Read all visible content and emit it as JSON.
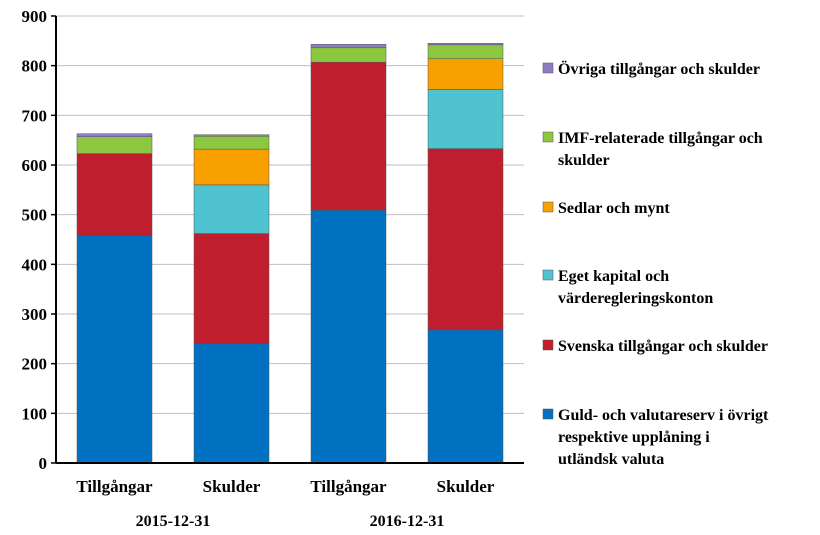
{
  "chart_data": {
    "type": "bar",
    "stacked": true,
    "title": "",
    "xlabel": "",
    "ylabel": "",
    "ylim": [
      0,
      900
    ],
    "yticks": [
      0,
      100,
      200,
      300,
      400,
      500,
      600,
      700,
      800,
      900
    ],
    "grid": true,
    "legend_position": "right",
    "categories": [
      "Tillgångar",
      "Skulder",
      "Tillgångar",
      "Skulder"
    ],
    "groups": [
      {
        "label": "2015-12-31",
        "categories": [
          0,
          1
        ]
      },
      {
        "label": "2016-12-31",
        "categories": [
          2,
          3
        ]
      }
    ],
    "series": [
      {
        "name": "Guld- och valutareserv i övrigt respektive upplåning i utländsk valuta",
        "legend_lines": [
          "Guld- och valutareserv i övrigt",
          "respektive upplåning i",
          "utländsk valuta"
        ],
        "color": "#0070C0",
        "values": [
          458,
          240,
          509,
          268
        ]
      },
      {
        "name": "Svenska tillgångar och skulder",
        "legend_lines": [
          "Svenska tillgångar och skulder"
        ],
        "color": "#BE1E2D",
        "values": [
          165,
          222,
          298,
          365
        ]
      },
      {
        "name": "Eget kapital och värderegleringskonton",
        "legend_lines": [
          "Eget kapital och",
          "värderegleringskonton"
        ],
        "color": "#4FC3D0",
        "values": [
          0,
          98,
          0,
          119
        ]
      },
      {
        "name": "Sedlar och mynt",
        "legend_lines": [
          "Sedlar och mynt"
        ],
        "color": "#F7A000",
        "values": [
          0,
          72,
          0,
          62
        ]
      },
      {
        "name": "IMF-relaterade tillgångar och skulder",
        "legend_lines": [
          "IMF-relaterade tillgångar och",
          "skulder"
        ],
        "color": "#8DC63F",
        "values": [
          34,
          26,
          29,
          28
        ]
      },
      {
        "name": "Övriga tillgångar och skulder",
        "legend_lines": [
          "Övriga tillgångar och skulder"
        ],
        "color": "#8E7CC3",
        "values": [
          6,
          3,
          7,
          3
        ]
      }
    ]
  }
}
